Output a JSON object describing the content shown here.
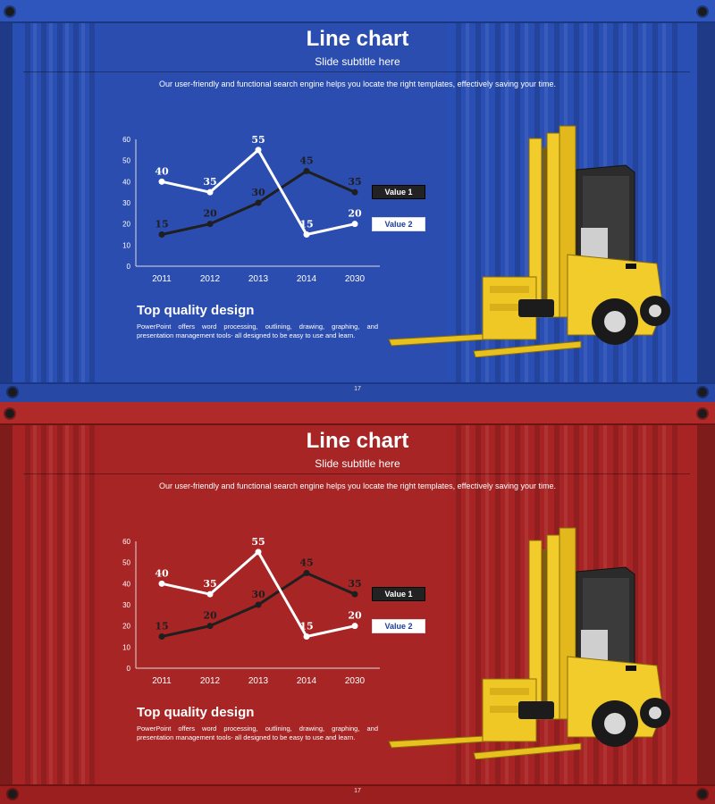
{
  "slides": [
    {
      "theme": "blue",
      "title": "Line chart",
      "subtitle": "Slide subtitle here",
      "description": "Our user-friendly and functional search engine helps you locate the right templates, effectively saving your time.",
      "legend": [
        "Value 1",
        "Value 2"
      ],
      "section_title": "Top quality design",
      "section_body": "PowerPoint offers word processing, outlining, drawing, graphing, and presentation management tools- all designed to be easy to use and learn.",
      "page_number": "17"
    },
    {
      "theme": "red",
      "title": "Line chart",
      "subtitle": "Slide subtitle here",
      "description": "Our user-friendly and functional search engine helps you locate the right templates, effectively saving your time.",
      "legend": [
        "Value 1",
        "Value 2"
      ],
      "section_title": "Top quality design",
      "section_body": "PowerPoint offers word processing, outlining, drawing, graphing, and presentation management tools- all designed to be easy to use and learn.",
      "page_number": "17"
    }
  ],
  "colors": {
    "blue_background": "#2a4fb4",
    "red_background": "#a82424",
    "value1_line": "#1f1f1f",
    "value2_line": "#ffffff",
    "forklift_yellow": "#f2cc2a"
  },
  "chart_data": [
    {
      "type": "line",
      "categories": [
        "2011",
        "2012",
        "2013",
        "2014",
        "2030"
      ],
      "ylim": [
        0,
        60
      ],
      "yticks": [
        0,
        10,
        20,
        30,
        40,
        50,
        60
      ],
      "grid": false,
      "legend_position": "right",
      "series": [
        {
          "name": "Value 1",
          "values": [
            15,
            20,
            30,
            45,
            35
          ],
          "color": "#1f1f1f"
        },
        {
          "name": "Value 2",
          "values": [
            40,
            35,
            55,
            15,
            20
          ],
          "color": "#ffffff"
        }
      ]
    },
    {
      "type": "line",
      "categories": [
        "2011",
        "2012",
        "2013",
        "2014",
        "2030"
      ],
      "ylim": [
        0,
        60
      ],
      "yticks": [
        0,
        10,
        20,
        30,
        40,
        50,
        60
      ],
      "grid": false,
      "legend_position": "right",
      "series": [
        {
          "name": "Value 1",
          "values": [
            15,
            20,
            30,
            45,
            35
          ],
          "color": "#1f1f1f"
        },
        {
          "name": "Value 2",
          "values": [
            40,
            35,
            55,
            15,
            20
          ],
          "color": "#ffffff"
        }
      ]
    }
  ]
}
